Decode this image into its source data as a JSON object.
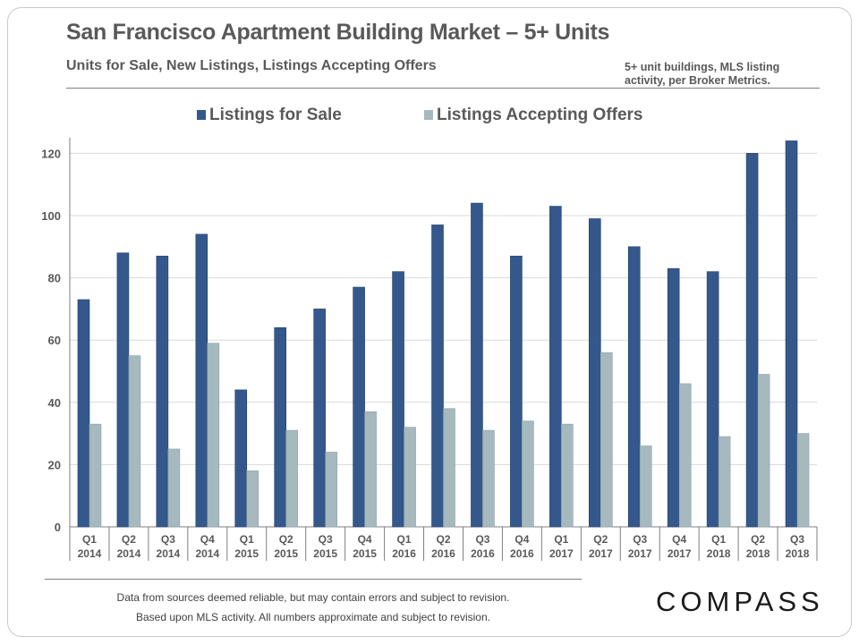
{
  "header": {
    "title": "San Francisco Apartment Building Market – 5+ Units",
    "subtitle": "Units for Sale, New Listings, Listings Accepting Offers",
    "note_line1": "5+ unit buildings, MLS listing",
    "note_line2": "activity, per Broker Metrics."
  },
  "footer": {
    "line1": "Data from sources deemed reliable, but may contain errors and subject to revision.",
    "line2": "Based upon MLS activity. All numbers approximate and subject to revision.",
    "logo": "COMPASS"
  },
  "colors": {
    "listings_for_sale": "#34588c",
    "listings_accepting_offers": "#a5b9be",
    "grid": "#d9d9d9",
    "axis": "#7f7f7f",
    "text": "#595959"
  },
  "chart_data": {
    "type": "bar",
    "title": "",
    "xlabel": "",
    "ylabel": "",
    "ylim": [
      0,
      125
    ],
    "yticks": [
      0,
      20,
      40,
      60,
      80,
      100,
      120
    ],
    "grid": true,
    "legend_position": "top-center",
    "categories": [
      [
        "Q1",
        "2014"
      ],
      [
        "Q2",
        "2014"
      ],
      [
        "Q3",
        "2014"
      ],
      [
        "Q4",
        "2014"
      ],
      [
        "Q1",
        "2015"
      ],
      [
        "Q2",
        "2015"
      ],
      [
        "Q3",
        "2015"
      ],
      [
        "Q4",
        "2015"
      ],
      [
        "Q1",
        "2016"
      ],
      [
        "Q2",
        "2016"
      ],
      [
        "Q3",
        "2016"
      ],
      [
        "Q4",
        "2016"
      ],
      [
        "Q1",
        "2017"
      ],
      [
        "Q2",
        "2017"
      ],
      [
        "Q3",
        "2017"
      ],
      [
        "Q4",
        "2017"
      ],
      [
        "Q1",
        "2018"
      ],
      [
        "Q2",
        "2018"
      ],
      [
        "Q3",
        "2018"
      ]
    ],
    "series": [
      {
        "name": "Listings for Sale",
        "values": [
          73,
          88,
          87,
          94,
          44,
          64,
          70,
          77,
          82,
          97,
          104,
          87,
          103,
          99,
          90,
          83,
          82,
          120,
          124
        ]
      },
      {
        "name": "Listings Accepting Offers",
        "values": [
          33,
          55,
          25,
          59,
          18,
          31,
          24,
          37,
          32,
          38,
          31,
          34,
          33,
          56,
          26,
          46,
          29,
          49,
          30
        ]
      }
    ]
  }
}
